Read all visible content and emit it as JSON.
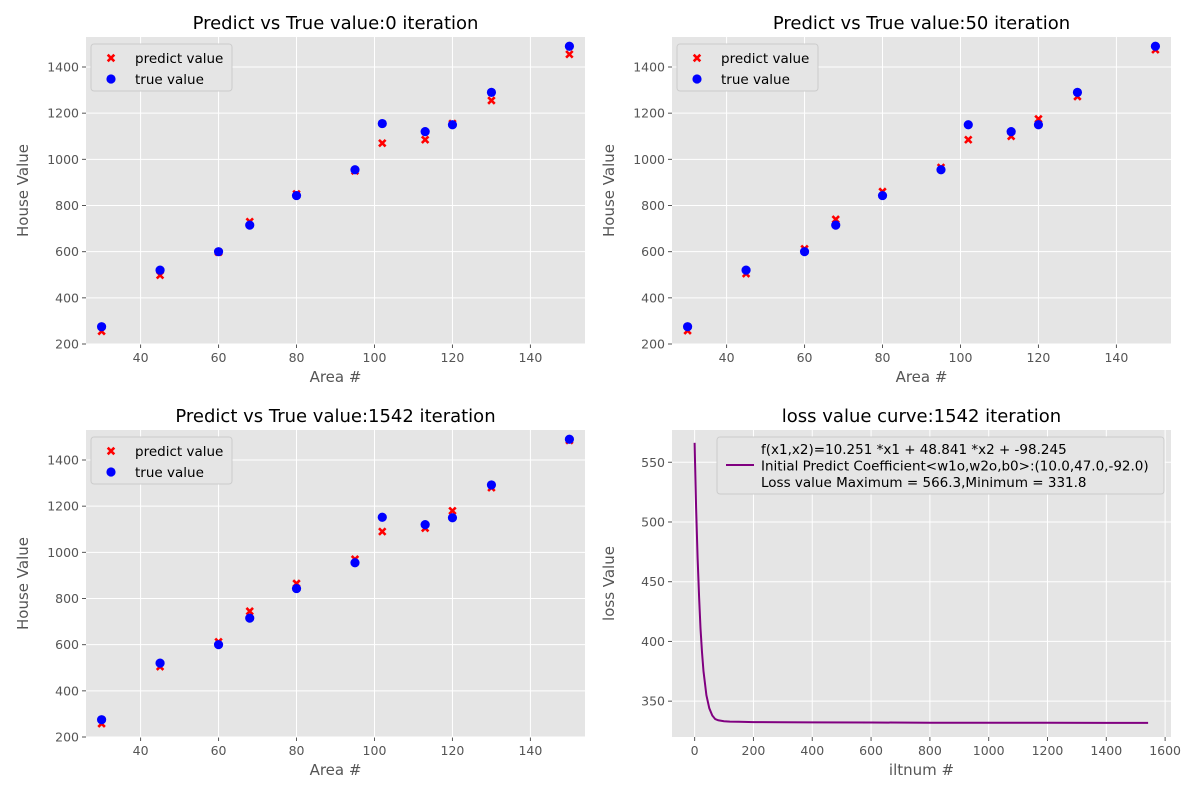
{
  "chart_data": [
    {
      "type": "scatter",
      "title": "Predict vs True value:0 iteration",
      "xlabel": "Area #",
      "ylabel": "House Value",
      "xlim": [
        26,
        154
      ],
      "ylim": [
        200,
        1530
      ],
      "xticks": [
        "40",
        "60",
        "80",
        "100",
        "120",
        "140"
      ],
      "yticks": [
        "200",
        "400",
        "600",
        "800",
        "1000",
        "1200",
        "1400"
      ],
      "grid": true,
      "legend_position": "upper-left",
      "series": [
        {
          "name": "predict value",
          "marker": "x",
          "color": "#ff0000",
          "x": [
            30,
            45,
            60,
            68,
            80,
            95,
            102,
            113,
            120,
            130,
            150
          ],
          "y": [
            255,
            498,
            598,
            730,
            850,
            950,
            1070,
            1085,
            1155,
            1255,
            1455
          ]
        },
        {
          "name": "true value",
          "marker": "circle",
          "color": "#0000ff",
          "x": [
            30,
            45,
            60,
            68,
            80,
            95,
            102,
            113,
            120,
            130,
            150
          ],
          "y": [
            275,
            520,
            600,
            715,
            843,
            955,
            1155,
            1120,
            1150,
            1290,
            1490
          ]
        }
      ]
    },
    {
      "type": "scatter",
      "title": "Predict vs True value:50 iteration",
      "xlabel": "Area #",
      "ylabel": "House Value",
      "xlim": [
        26,
        154
      ],
      "ylim": [
        200,
        1530
      ],
      "xticks": [
        "40",
        "60",
        "80",
        "100",
        "120",
        "140"
      ],
      "yticks": [
        "200",
        "400",
        "600",
        "800",
        "1000",
        "1200",
        "1400"
      ],
      "grid": true,
      "legend_position": "upper-left",
      "series": [
        {
          "name": "predict value",
          "marker": "x",
          "color": "#ff0000",
          "x": [
            30,
            45,
            60,
            68,
            80,
            95,
            102,
            113,
            120,
            130,
            150
          ],
          "y": [
            258,
            505,
            612,
            740,
            860,
            965,
            1085,
            1100,
            1175,
            1272,
            1475
          ]
        },
        {
          "name": "true value",
          "marker": "circle",
          "color": "#0000ff",
          "x": [
            30,
            45,
            60,
            68,
            80,
            95,
            102,
            113,
            120,
            130,
            150
          ],
          "y": [
            275,
            520,
            600,
            715,
            843,
            955,
            1150,
            1120,
            1150,
            1290,
            1490
          ]
        }
      ]
    },
    {
      "type": "scatter",
      "title": "Predict vs True value:1542 iteration",
      "xlabel": "Area #",
      "ylabel": "House Value",
      "xlim": [
        26,
        154
      ],
      "ylim": [
        200,
        1530
      ],
      "xticks": [
        "40",
        "60",
        "80",
        "100",
        "120",
        "140"
      ],
      "yticks": [
        "200",
        "400",
        "600",
        "800",
        "1000",
        "1200",
        "1400"
      ],
      "grid": true,
      "legend_position": "upper-left",
      "series": [
        {
          "name": "predict value",
          "marker": "x",
          "color": "#ff0000",
          "x": [
            30,
            45,
            60,
            68,
            80,
            95,
            102,
            113,
            120,
            130,
            150
          ],
          "y": [
            258,
            505,
            612,
            745,
            865,
            970,
            1090,
            1105,
            1180,
            1280,
            1485
          ]
        },
        {
          "name": "true value",
          "marker": "circle",
          "color": "#0000ff",
          "x": [
            30,
            45,
            60,
            68,
            80,
            95,
            102,
            113,
            120,
            130,
            150
          ],
          "y": [
            275,
            520,
            600,
            715,
            843,
            955,
            1152,
            1120,
            1150,
            1292,
            1490
          ]
        }
      ]
    },
    {
      "type": "line",
      "title": "loss value curve:1542 iteration",
      "xlabel": "iltnum #",
      "ylabel": "loss Value",
      "xlim": [
        -77,
        1620
      ],
      "ylim": [
        320,
        577
      ],
      "xticks": [
        "0",
        "200",
        "400",
        "600",
        "800",
        "1000",
        "1200",
        "1400",
        "1600"
      ],
      "yticks": [
        "350",
        "400",
        "450",
        "500",
        "550"
      ],
      "grid": true,
      "legend_position": "upper-right",
      "legend_lines": [
        "f(x1,x2)=10.251 *x1 + 48.841 *x2 + -98.245",
        "Initial Predict Coefficient<w1o,w2o,b0>:(10.0,47.0,-92.0)",
        " Loss value Maximum = 566.3,Minimum = 331.8"
      ],
      "series": [
        {
          "color": "#800080",
          "x": [
            0,
            5,
            10,
            15,
            20,
            25,
            30,
            40,
            50,
            60,
            70,
            80,
            100,
            120,
            150,
            200,
            300,
            400,
            600,
            800,
            1000,
            1200,
            1400,
            1542
          ],
          "y": [
            566.3,
            512,
            470,
            437,
            411,
            391,
            375,
            355,
            344,
            338,
            335,
            334,
            333.2,
            332.9,
            332.7,
            332.5,
            332.3,
            332.2,
            332.1,
            332.0,
            331.9,
            331.9,
            331.8,
            331.8
          ]
        }
      ]
    }
  ]
}
